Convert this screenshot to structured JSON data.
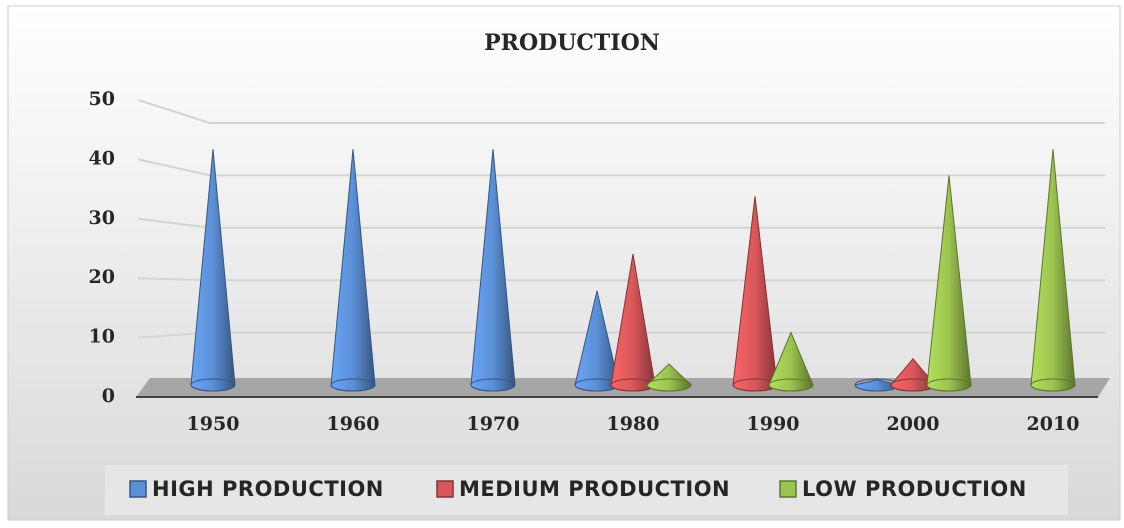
{
  "chart_data": {
    "type": "cone",
    "title": "PRODUCTION",
    "categories": [
      "1950",
      "1960",
      "1970",
      "1980",
      "1990",
      "2000",
      "2010"
    ],
    "series": [
      {
        "name": "HIGH PRODUCTION",
        "color": "#5b8fd6",
        "values": [
          45,
          45,
          45,
          18,
          null,
          1,
          null
        ]
      },
      {
        "name": "MEDIUM PRODUCTION",
        "color": "#d9575a",
        "values": [
          null,
          null,
          null,
          25,
          36,
          5,
          null
        ]
      },
      {
        "name": "LOW PRODUCTION",
        "color": "#9bc34f",
        "values": [
          null,
          null,
          null,
          4,
          10,
          40,
          45
        ]
      }
    ],
    "ylim": [
      0,
      50
    ],
    "yticks": [
      0,
      10,
      20,
      30,
      40,
      50
    ],
    "grid": true,
    "legend": "bottom"
  }
}
